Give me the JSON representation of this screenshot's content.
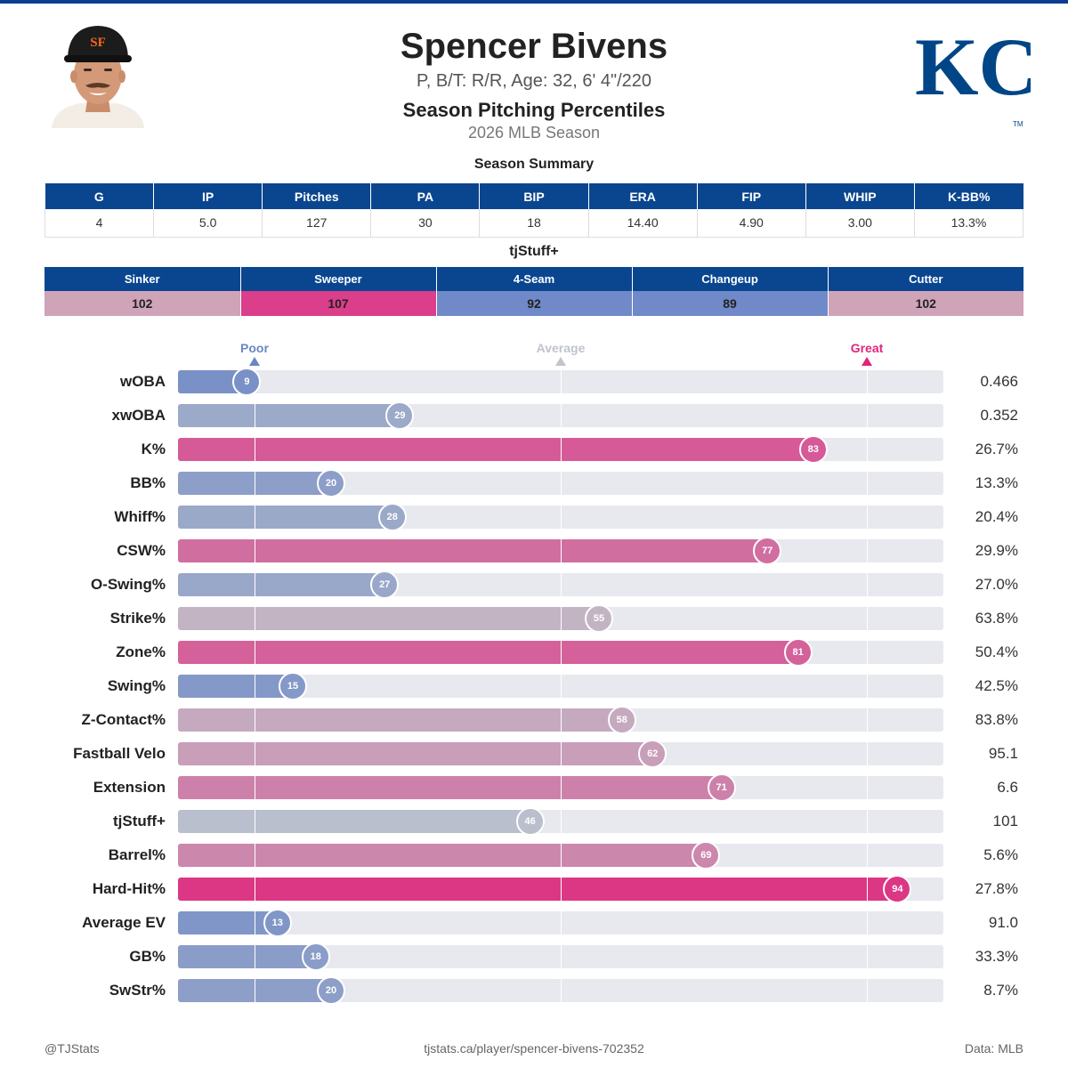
{
  "header": {
    "name": "Spencer Bivens",
    "bio": "P, B/T: R/R, Age: 32, 6' 4\"/220",
    "subtitle": "Season Pitching Percentiles",
    "season": "2026 MLB Season",
    "cap_monogram": "SF",
    "team_logo_text": "KC",
    "team_logo_tm": "TM"
  },
  "colors": {
    "header_blue": "#0a4690",
    "poor": "#6b86c6",
    "average": "#c0c4cc",
    "great": "#e0247b",
    "track": "#e8e9ee"
  },
  "summary": {
    "title": "Season Summary",
    "columns": [
      "G",
      "IP",
      "Pitches",
      "PA",
      "BIP",
      "ERA",
      "FIP",
      "WHIP",
      "K-BB%"
    ],
    "values": [
      "4",
      "5.0",
      "127",
      "30",
      "18",
      "14.40",
      "4.90",
      "3.00",
      "13.3%"
    ]
  },
  "stuff": {
    "title": "tjStuff+",
    "columns": [
      "Sinker",
      "Sweeper",
      "4-Seam",
      "Changeup",
      "Cutter"
    ],
    "values": [
      "102",
      "107",
      "92",
      "89",
      "102"
    ],
    "colors": [
      "#cfa3b8",
      "#db3e8b",
      "#7089c8",
      "#7089c8",
      "#cfa3b8"
    ]
  },
  "legend": {
    "poor": "Poor",
    "average": "Average",
    "great": "Great"
  },
  "chart_data": {
    "type": "bar",
    "title": "Season Pitching Percentiles",
    "xlim": [
      0,
      100
    ],
    "reference_percentiles": {
      "poor": 10,
      "average": 50,
      "great": 90
    },
    "categories": [
      "wOBA",
      "xwOBA",
      "K%",
      "BB%",
      "Whiff%",
      "CSW%",
      "O-Swing%",
      "Strike%",
      "Zone%",
      "Swing%",
      "Z-Contact%",
      "Fastball Velo",
      "Extension",
      "tjStuff+",
      "Barrel%",
      "Hard-Hit%",
      "Average EV",
      "GB%",
      "SwStr%"
    ],
    "percentiles": [
      9,
      29,
      83,
      20,
      28,
      77,
      27,
      55,
      81,
      15,
      58,
      62,
      71,
      46,
      69,
      94,
      13,
      18,
      20
    ],
    "values": [
      "0.466",
      "0.352",
      "26.7%",
      "13.3%",
      "20.4%",
      "29.9%",
      "27.0%",
      "63.8%",
      "50.4%",
      "42.5%",
      "83.8%",
      "95.1",
      "6.6",
      "101",
      "5.6%",
      "27.8%",
      "91.0",
      "33.3%",
      "8.7%"
    ]
  },
  "footer": {
    "left": "@TJStats",
    "center": "tjstats.ca/player/spencer-bivens-702352",
    "right": "Data: MLB"
  }
}
